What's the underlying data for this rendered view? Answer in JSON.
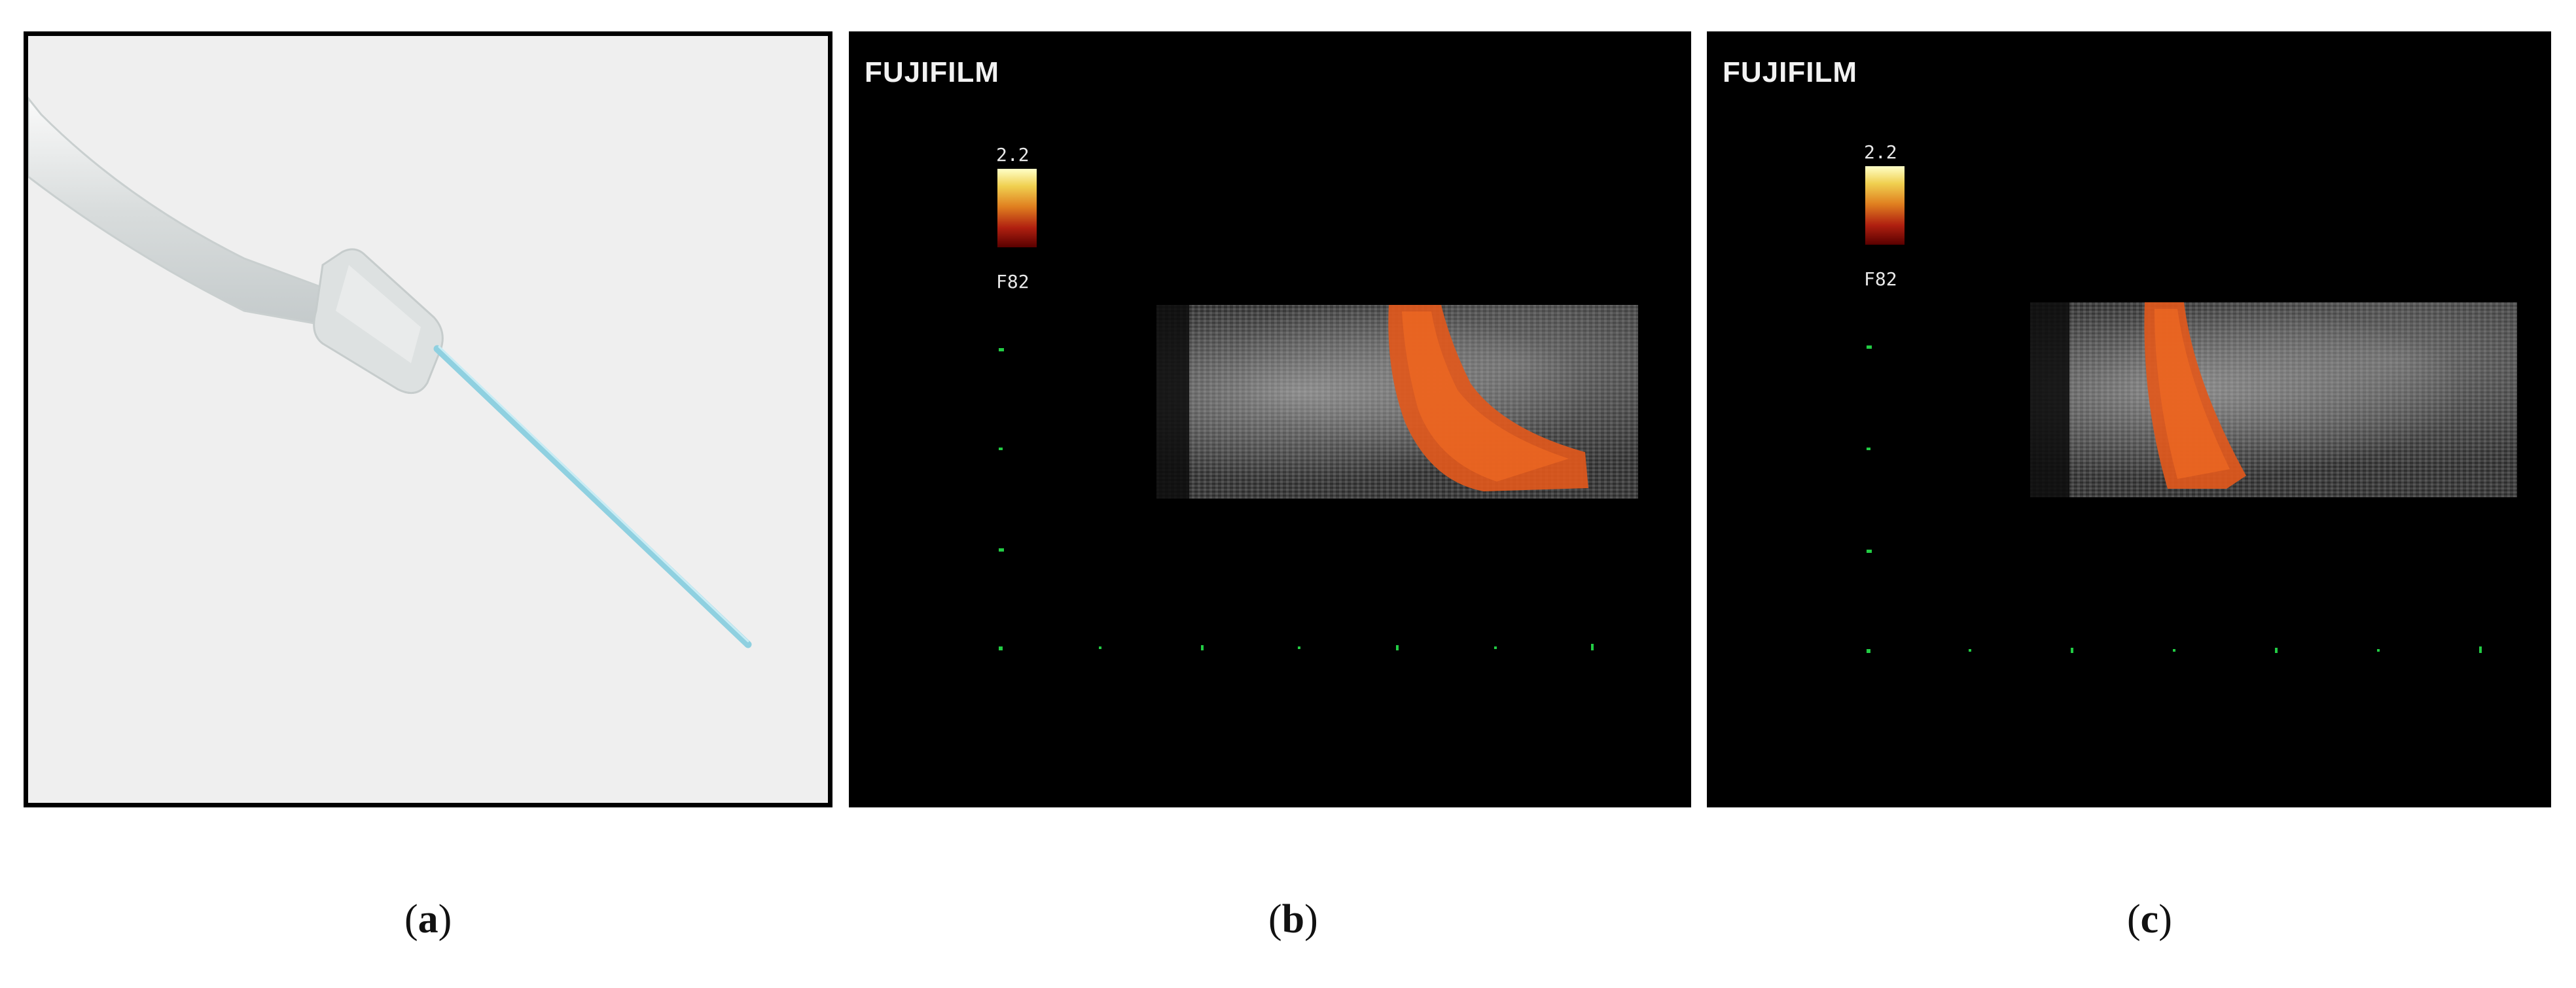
{
  "panels": [
    {
      "id": "a",
      "label_open": "(",
      "label_letter": "a",
      "label_close": ")"
    },
    {
      "id": "b",
      "brand": "FUJIFILM",
      "scale_max": "2.2",
      "scale_code": "F82",
      "label_open": "(",
      "label_letter": "b",
      "label_close": ")"
    },
    {
      "id": "c",
      "brand": "FUJIFILM",
      "scale_max": "2.2",
      "scale_code": "F82",
      "label_open": "(",
      "label_letter": "c",
      "label_close": ")"
    }
  ],
  "colors": {
    "needle": "#8fd0e0",
    "hub": "#dfe2e2",
    "doppler": "#e0581c",
    "marker": "#22cc44"
  },
  "icons": [
    "catheter-needle-photo",
    "ultrasound-doppler-scan"
  ]
}
